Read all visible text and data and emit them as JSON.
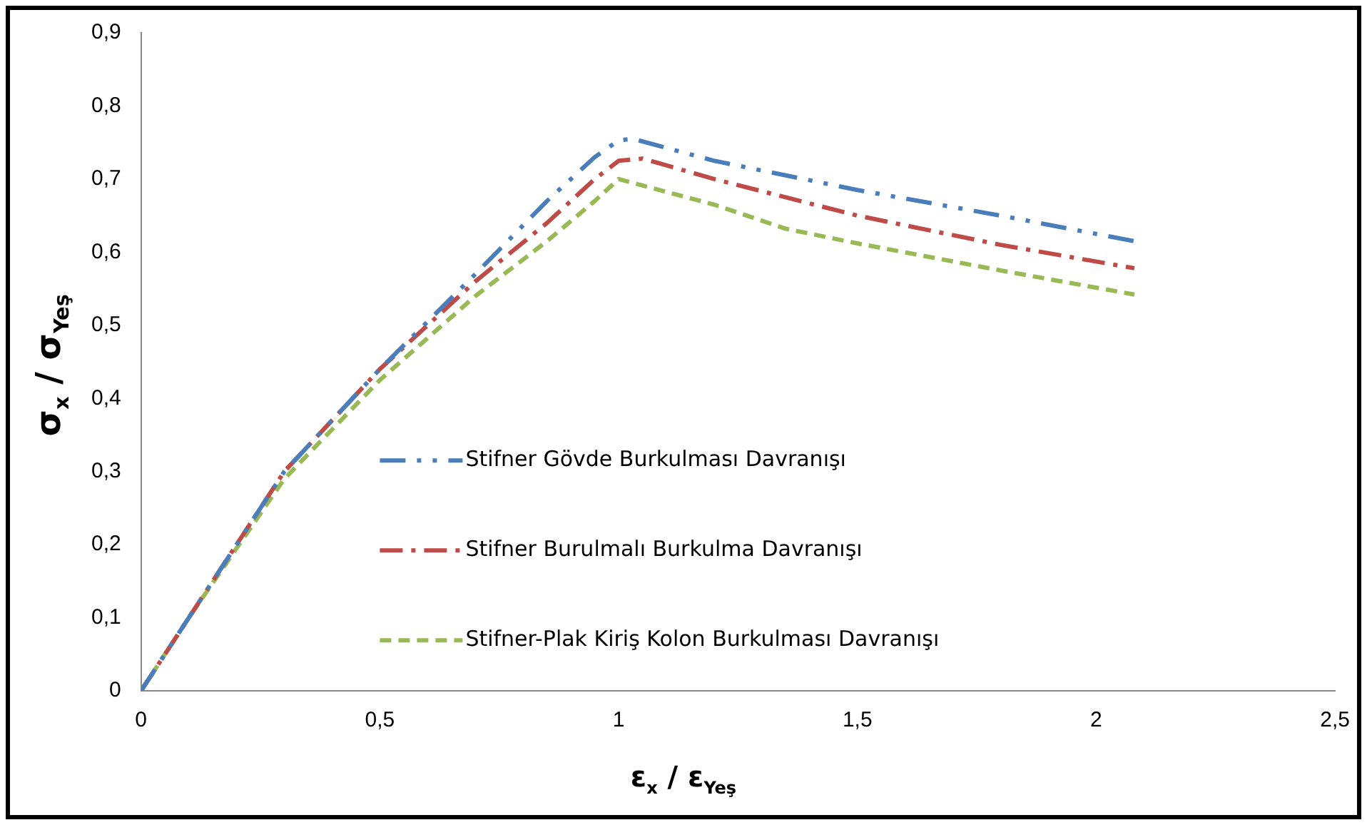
{
  "chart_data": {
    "type": "line",
    "xlabel": "ε$_{x}$ / ε$_{Yeş}$",
    "ylabel": "σ$_{x}$ / σ$_{Yeş}$",
    "xlim": [
      0,
      2.5
    ],
    "xticks": [
      {
        "value": 0,
        "label": "0"
      },
      {
        "value": 0.5,
        "label": "0,5"
      },
      {
        "value": 1,
        "label": "1"
      },
      {
        "value": 1.5,
        "label": "1,5"
      },
      {
        "value": 2,
        "label": "2"
      },
      {
        "value": 2.5,
        "label": "2,5"
      }
    ],
    "ylim": [
      0,
      0.9
    ],
    "yticks": [
      {
        "value": 0,
        "label": "0"
      },
      {
        "value": 0.1,
        "label": "0,1"
      },
      {
        "value": 0.2,
        "label": "0,2"
      },
      {
        "value": 0.3,
        "label": "0,3"
      },
      {
        "value": 0.4,
        "label": "0,4"
      },
      {
        "value": 0.5,
        "label": "0,5"
      },
      {
        "value": 0.6,
        "label": "0,6"
      },
      {
        "value": 0.7,
        "label": "0,7"
      },
      {
        "value": 0.8,
        "label": "0,8"
      },
      {
        "value": 0.9,
        "label": "0,9"
      }
    ],
    "grid": false,
    "legend": "bottom",
    "marker": "none",
    "series": [
      {
        "name": "Stifner Gövde Burkulması Davranışı",
        "color": "#4a7ebb",
        "line_style": "dashdotdot",
        "x": [
          0,
          0.1,
          0.3,
          0.5,
          0.7,
          0.85,
          0.95,
          1.0,
          1.03,
          1.2,
          1.5,
          1.8,
          2.08
        ],
        "values": [
          0,
          0.1,
          0.3,
          0.44,
          0.57,
          0.67,
          0.73,
          0.753,
          0.755,
          0.725,
          0.685,
          0.65,
          0.615
        ]
      },
      {
        "name": "Stifner Burulmalı Burkulma Davranışı",
        "color": "#be4b48",
        "line_style": "dashdot",
        "x": [
          0,
          0.1,
          0.3,
          0.5,
          0.7,
          0.85,
          0.95,
          1.0,
          1.05,
          1.2,
          1.5,
          1.8,
          2.08
        ],
        "values": [
          0,
          0.1,
          0.3,
          0.44,
          0.56,
          0.64,
          0.7,
          0.725,
          0.728,
          0.7,
          0.65,
          0.61,
          0.578
        ]
      },
      {
        "name": "Stifner-Plak Kiriş Kolon Burkulması Davranışı",
        "color": "#98b954",
        "line_style": "dashed",
        "x": [
          0,
          0.1,
          0.3,
          0.5,
          0.7,
          0.85,
          0.95,
          1.0,
          1.2,
          1.35,
          1.5,
          1.8,
          2.08
        ],
        "values": [
          0,
          0.1,
          0.29,
          0.425,
          0.54,
          0.615,
          0.67,
          0.7,
          0.665,
          0.632,
          0.612,
          0.575,
          0.542
        ]
      }
    ]
  }
}
